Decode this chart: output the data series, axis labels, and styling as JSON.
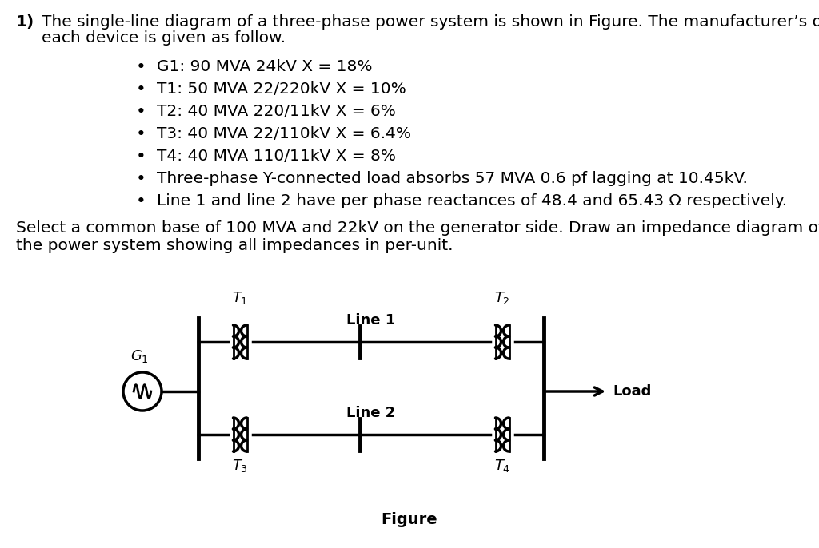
{
  "background_color": "#ffffff",
  "text_color": "#000000",
  "title_number": "1)",
  "main_text_line1": "The single-line diagram of a three-phase power system is shown in Figure. The manufacturer’s data for",
  "main_text_line2": "each device is given as follow.",
  "bullets": [
    "G1: 90 MVA 24kV X = 18%",
    "T1: 50 MVA 22/220kV X = 10%",
    "T2: 40 MVA 220/11kV X = 6%",
    "T3: 40 MVA 22/110kV X = 6.4%",
    "T4: 40 MVA 110/11kV X = 8%",
    "Three-phase Y-connected load absorbs 57 MVA 0.6 pf lagging at 10.45kV.",
    "Line 1 and line 2 have per phase reactances of 48.4 and 65.43 Ω respectively."
  ],
  "select_line1": "Select a common base of 100 MVA and 22kV on the generator side. Draw an impedance diagram of",
  "select_line2": "the power system showing all impedances in per-unit.",
  "figure_label": "Figure",
  "Line1_label": "Line 1",
  "Line2_label": "Line 2",
  "Load_label": "Load",
  "font_size": 14.5,
  "bullet_font_size": 14.5
}
